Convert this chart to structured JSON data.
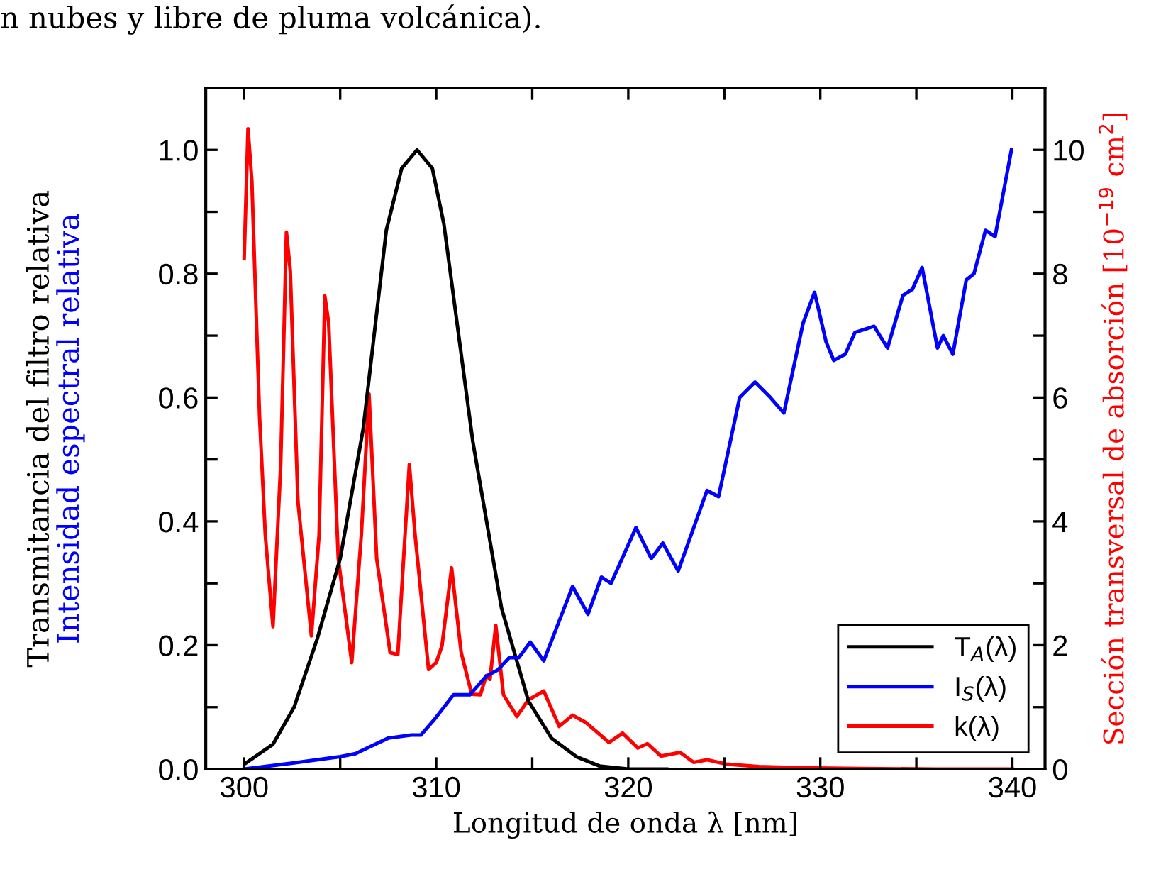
{
  "chart_data": {
    "type": "line",
    "xlabel": "Longitud de onda λ [nm]",
    "ylabel": [
      "Transmitancia del filtro relativa",
      "Intensidad espectral relativa"
    ],
    "y2label": "Sección transversal de absorción [10$^{−19}$ cm$^{2}$]",
    "annotations": [
      "n nubes y libre de pluma volcánica)."
    ],
    "xlim": [
      298,
      341.7
    ],
    "xticks": [
      300,
      {
        "value": 305,
        "label": null
      },
      310,
      {
        "value": 315,
        "label": null
      },
      320,
      {
        "value": 325,
        "label": null
      },
      330,
      {
        "value": 335,
        "label": null
      },
      340
    ],
    "ylim": [
      0,
      1.1
    ],
    "yticks": [
      {
        "value": 0,
        "label": "0.0"
      },
      {
        "value": 0.1,
        "label": null
      },
      0.2,
      {
        "value": 0.3,
        "label": null
      },
      0.4,
      {
        "value": 0.5,
        "label": null
      },
      0.6,
      {
        "value": 0.7,
        "label": null
      },
      0.8,
      {
        "value": 0.9,
        "label": null
      },
      {
        "value": 1,
        "label": "1.0"
      }
    ],
    "y2lim": [
      0,
      11
    ],
    "y2ticks": [
      0,
      {
        "value": 1,
        "label": null
      },
      2,
      {
        "value": 3,
        "label": null
      },
      4,
      {
        "value": 5,
        "label": null
      },
      6,
      {
        "value": 7,
        "label": null
      },
      8,
      {
        "value": 9,
        "label": null
      },
      10
    ],
    "legend": "bottom right",
    "grid": false,
    "marker": "none",
    "line_style": "solid",
    "series": [
      {
        "name": "T$_{A}$(λ)",
        "color": "#000000",
        "x": [
          300.1,
          301.5,
          302.6,
          303.8,
          305.0,
          306.2,
          307.4,
          308.2,
          309.0,
          309.8,
          310.4,
          311.9,
          313.4,
          314.8,
          316.0,
          317.3,
          318.5,
          320.0,
          322.0
        ],
        "values": [
          0.01,
          0.04,
          0.1,
          0.21,
          0.34,
          0.55,
          0.87,
          0.97,
          1.0,
          0.97,
          0.88,
          0.53,
          0.26,
          0.11,
          0.05,
          0.02,
          0.005,
          0.0,
          0.0
        ]
      },
      {
        "name": "I$_{S}$(λ)",
        "color": "#0000ff",
        "x": [
          300.0,
          302.6,
          305.0,
          305.8,
          307.5,
          308.7,
          309.2,
          309.9,
          310.9,
          311.75,
          312.6,
          313.2,
          313.8,
          314.3,
          314.9,
          315.6,
          317.1,
          317.9,
          318.6,
          319.1,
          320.4,
          321.2,
          321.8,
          322.6,
          324.1,
          324.7,
          325.8,
          326.6,
          327.4,
          328.1,
          329.1,
          329.7,
          330.3,
          330.7,
          331.3,
          331.8,
          332.8,
          333.5,
          334.3,
          334.8,
          335.3,
          336.1,
          336.4,
          336.9,
          337.6,
          338.0,
          338.6,
          339.1,
          339.95
        ],
        "values": [
          0.0,
          0.01,
          0.02,
          0.025,
          0.05,
          0.055,
          0.055,
          0.08,
          0.12,
          0.12,
          0.15,
          0.16,
          0.18,
          0.18,
          0.205,
          0.175,
          0.295,
          0.25,
          0.31,
          0.3,
          0.39,
          0.34,
          0.365,
          0.32,
          0.45,
          0.44,
          0.6,
          0.625,
          0.6,
          0.575,
          0.72,
          0.77,
          0.69,
          0.66,
          0.67,
          0.705,
          0.715,
          0.68,
          0.765,
          0.775,
          0.81,
          0.68,
          0.7,
          0.67,
          0.79,
          0.8,
          0.87,
          0.86,
          1.0
        ]
      },
      {
        "name": "k(λ)",
        "color": "#ff0000",
        "axis": "y2",
        "x": [
          300.0,
          300.2,
          300.4,
          300.8,
          301.1,
          301.5,
          301.9,
          302.2,
          302.4,
          302.8,
          303.5,
          303.9,
          304.2,
          304.4,
          304.9,
          305.6,
          306.1,
          306.5,
          306.9,
          307.6,
          308.0,
          308.3,
          308.6,
          308.9,
          309.6,
          310.0,
          310.3,
          310.8,
          311.3,
          311.85,
          312.3,
          312.6,
          312.8,
          313.1,
          313.5,
          314.2,
          314.8,
          315.6,
          316.4,
          317.1,
          317.8,
          319.0,
          319.7,
          320.5,
          321.0,
          321.7,
          322.7,
          323.4,
          324.1,
          325.1,
          326.8,
          329.0,
          332.0,
          336.0,
          340.0
        ],
        "values": [
          8.25,
          10.34,
          9.5,
          5.7,
          3.78,
          2.3,
          4.9,
          8.67,
          8.05,
          4.32,
          2.15,
          3.78,
          7.64,
          7.2,
          3.4,
          1.72,
          3.78,
          6.06,
          3.4,
          1.88,
          1.85,
          3.4,
          4.92,
          3.78,
          1.61,
          1.72,
          1.99,
          3.25,
          1.88,
          1.21,
          1.2,
          1.51,
          1.45,
          2.32,
          1.2,
          0.85,
          1.12,
          1.26,
          0.69,
          0.87,
          0.75,
          0.43,
          0.58,
          0.34,
          0.41,
          0.21,
          0.27,
          0.11,
          0.15,
          0.08,
          0.04,
          0.02,
          0.01,
          0.0,
          0.0
        ]
      }
    ]
  }
}
